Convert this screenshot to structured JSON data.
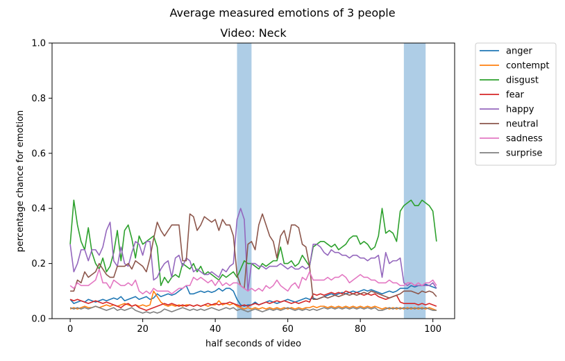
{
  "chart_data": {
    "type": "line",
    "suptitle": "Average measured emotions of 3 people",
    "title": "Video: Neck",
    "xlabel": "half seconds of video",
    "ylabel": "percentage chance for emotion",
    "xlim": [
      -5,
      106
    ],
    "ylim": [
      0,
      1.0
    ],
    "xticks": [
      0,
      20,
      40,
      60,
      80,
      100
    ],
    "yticks": [
      0.0,
      0.2,
      0.4,
      0.6,
      0.8,
      1.0
    ],
    "xtick_labels": [
      "0",
      "20",
      "40",
      "60",
      "80",
      "100"
    ],
    "ytick_labels": [
      "0.0",
      "0.2",
      "0.4",
      "0.6",
      "0.8",
      "1.0"
    ],
    "highlight_spans": [
      [
        46,
        50
      ],
      [
        92,
        98
      ]
    ],
    "highlight_color": "#aecde6",
    "legend_position": "outside-right",
    "grid": false,
    "x": [
      0,
      1,
      2,
      3,
      4,
      5,
      6,
      7,
      8,
      9,
      10,
      11,
      12,
      13,
      14,
      15,
      16,
      17,
      18,
      19,
      20,
      21,
      22,
      23,
      24,
      25,
      26,
      27,
      28,
      29,
      30,
      31,
      32,
      33,
      34,
      35,
      36,
      37,
      38,
      39,
      40,
      41,
      42,
      43,
      44,
      45,
      46,
      47,
      48,
      49,
      50,
      51,
      52,
      53,
      54,
      55,
      56,
      57,
      58,
      59,
      60,
      61,
      62,
      63,
      64,
      65,
      66,
      67,
      68,
      69,
      70,
      71,
      72,
      73,
      74,
      75,
      76,
      77,
      78,
      79,
      80,
      81,
      82,
      83,
      84,
      85,
      86,
      87,
      88,
      89,
      90,
      91,
      92,
      93,
      94,
      95,
      96,
      97,
      98,
      99,
      100,
      101
    ],
    "series": [
      {
        "name": "anger",
        "color": "#1f77b4",
        "values": [
          0.07,
          0.055,
          0.06,
          0.065,
          0.06,
          0.07,
          0.065,
          0.06,
          0.065,
          0.07,
          0.065,
          0.07,
          0.075,
          0.07,
          0.08,
          0.065,
          0.07,
          0.075,
          0.08,
          0.07,
          0.075,
          0.08,
          0.07,
          0.075,
          0.09,
          0.08,
          0.085,
          0.09,
          0.085,
          0.09,
          0.1,
          0.11,
          0.12,
          0.09,
          0.09,
          0.095,
          0.1,
          0.095,
          0.1,
          0.095,
          0.1,
          0.11,
          0.1,
          0.11,
          0.11,
          0.1,
          0.07,
          0.05,
          0.045,
          0.05,
          0.05,
          0.06,
          0.05,
          0.055,
          0.06,
          0.065,
          0.06,
          0.055,
          0.06,
          0.065,
          0.07,
          0.065,
          0.06,
          0.065,
          0.07,
          0.075,
          0.07,
          0.075,
          0.07,
          0.075,
          0.08,
          0.085,
          0.09,
          0.085,
          0.09,
          0.095,
          0.09,
          0.095,
          0.1,
          0.095,
          0.1,
          0.105,
          0.1,
          0.105,
          0.1,
          0.095,
          0.09,
          0.095,
          0.1,
          0.095,
          0.1,
          0.11,
          0.11,
          0.11,
          0.12,
          0.115,
          0.12,
          0.12,
          0.125,
          0.12,
          0.115,
          0.11
        ]
      },
      {
        "name": "contempt",
        "color": "#ff7f0e",
        "values": [
          0.035,
          0.04,
          0.035,
          0.04,
          0.045,
          0.04,
          0.04,
          0.045,
          0.04,
          0.045,
          0.05,
          0.045,
          0.05,
          0.045,
          0.05,
          0.055,
          0.05,
          0.045,
          0.05,
          0.045,
          0.05,
          0.045,
          0.05,
          0.1,
          0.08,
          0.06,
          0.05,
          0.045,
          0.05,
          0.045,
          0.05,
          0.045,
          0.05,
          0.05,
          0.045,
          0.05,
          0.045,
          0.05,
          0.045,
          0.05,
          0.05,
          0.065,
          0.05,
          0.055,
          0.05,
          0.055,
          0.045,
          0.04,
          0.035,
          0.04,
          0.035,
          0.04,
          0.035,
          0.04,
          0.035,
          0.04,
          0.035,
          0.04,
          0.035,
          0.04,
          0.035,
          0.04,
          0.035,
          0.04,
          0.035,
          0.04,
          0.04,
          0.045,
          0.04,
          0.045,
          0.045,
          0.04,
          0.045,
          0.04,
          0.045,
          0.04,
          0.045,
          0.04,
          0.045,
          0.04,
          0.045,
          0.04,
          0.045,
          0.04,
          0.045,
          0.04,
          0.035,
          0.04,
          0.035,
          0.04,
          0.035,
          0.04,
          0.035,
          0.04,
          0.035,
          0.04,
          0.035,
          0.04,
          0.035,
          0.04,
          0.035,
          0.03
        ]
      },
      {
        "name": "disgust",
        "color": "#2ca02c",
        "values": [
          0.27,
          0.43,
          0.34,
          0.28,
          0.25,
          0.33,
          0.24,
          0.2,
          0.18,
          0.22,
          0.17,
          0.19,
          0.24,
          0.32,
          0.21,
          0.32,
          0.34,
          0.29,
          0.22,
          0.3,
          0.27,
          0.28,
          0.29,
          0.3,
          0.26,
          0.12,
          0.15,
          0.13,
          0.15,
          0.16,
          0.15,
          0.2,
          0.19,
          0.18,
          0.2,
          0.17,
          0.19,
          0.16,
          0.17,
          0.16,
          0.15,
          0.14,
          0.16,
          0.15,
          0.16,
          0.17,
          0.15,
          0.18,
          0.21,
          0.2,
          0.2,
          0.19,
          0.18,
          0.2,
          0.19,
          0.2,
          0.21,
          0.21,
          0.26,
          0.2,
          0.2,
          0.21,
          0.19,
          0.2,
          0.23,
          0.21,
          0.19,
          0.26,
          0.27,
          0.28,
          0.28,
          0.27,
          0.26,
          0.27,
          0.25,
          0.26,
          0.27,
          0.29,
          0.3,
          0.3,
          0.27,
          0.28,
          0.27,
          0.25,
          0.26,
          0.3,
          0.4,
          0.31,
          0.32,
          0.31,
          0.28,
          0.39,
          0.41,
          0.42,
          0.43,
          0.41,
          0.41,
          0.43,
          0.42,
          0.41,
          0.39,
          0.28
        ]
      },
      {
        "name": "fear",
        "color": "#d62728",
        "values": [
          0.07,
          0.065,
          0.07,
          0.065,
          0.06,
          0.055,
          0.06,
          0.065,
          0.06,
          0.055,
          0.06,
          0.055,
          0.05,
          0.045,
          0.04,
          0.05,
          0.055,
          0.045,
          0.05,
          0.04,
          0.035,
          0.03,
          0.035,
          0.04,
          0.045,
          0.05,
          0.055,
          0.05,
          0.055,
          0.05,
          0.045,
          0.05,
          0.045,
          0.05,
          0.045,
          0.05,
          0.045,
          0.05,
          0.055,
          0.05,
          0.055,
          0.05,
          0.055,
          0.055,
          0.06,
          0.055,
          0.05,
          0.045,
          0.05,
          0.045,
          0.05,
          0.055,
          0.05,
          0.055,
          0.06,
          0.055,
          0.06,
          0.065,
          0.06,
          0.065,
          0.06,
          0.055,
          0.06,
          0.055,
          0.06,
          0.065,
          0.06,
          0.09,
          0.085,
          0.09,
          0.085,
          0.09,
          0.095,
          0.09,
          0.095,
          0.09,
          0.1,
          0.095,
          0.09,
          0.095,
          0.09,
          0.085,
          0.09,
          0.085,
          0.09,
          0.08,
          0.075,
          0.07,
          0.075,
          0.08,
          0.085,
          0.06,
          0.055,
          0.055,
          0.055,
          0.055,
          0.05,
          0.055,
          0.05,
          0.055,
          0.05,
          0.045
        ]
      },
      {
        "name": "happy",
        "color": "#9467bd",
        "values": [
          0.27,
          0.17,
          0.2,
          0.25,
          0.25,
          0.21,
          0.25,
          0.25,
          0.23,
          0.26,
          0.32,
          0.35,
          0.21,
          0.19,
          0.26,
          0.2,
          0.19,
          0.24,
          0.28,
          0.27,
          0.23,
          0.28,
          0.28,
          0.14,
          0.15,
          0.18,
          0.2,
          0.21,
          0.15,
          0.22,
          0.23,
          0.19,
          0.22,
          0.21,
          0.17,
          0.18,
          0.17,
          0.16,
          0.16,
          0.17,
          0.16,
          0.15,
          0.18,
          0.17,
          0.19,
          0.2,
          0.36,
          0.4,
          0.36,
          0.1,
          0.2,
          0.2,
          0.19,
          0.19,
          0.18,
          0.19,
          0.19,
          0.19,
          0.2,
          0.19,
          0.18,
          0.19,
          0.18,
          0.18,
          0.19,
          0.18,
          0.19,
          0.27,
          0.27,
          0.26,
          0.24,
          0.23,
          0.25,
          0.24,
          0.24,
          0.23,
          0.23,
          0.22,
          0.23,
          0.23,
          0.22,
          0.22,
          0.21,
          0.22,
          0.22,
          0.23,
          0.15,
          0.24,
          0.2,
          0.21,
          0.21,
          0.22,
          0.13,
          0.12,
          0.13,
          0.12,
          0.12,
          0.12,
          0.12,
          0.12,
          0.13,
          0.11
        ]
      },
      {
        "name": "neutral",
        "color": "#8c564b",
        "values": [
          0.1,
          0.1,
          0.14,
          0.13,
          0.17,
          0.15,
          0.16,
          0.17,
          0.2,
          0.18,
          0.16,
          0.15,
          0.15,
          0.19,
          0.19,
          0.19,
          0.2,
          0.18,
          0.21,
          0.2,
          0.19,
          0.17,
          0.22,
          0.29,
          0.35,
          0.32,
          0.3,
          0.32,
          0.34,
          0.34,
          0.34,
          0.21,
          0.21,
          0.38,
          0.37,
          0.32,
          0.34,
          0.37,
          0.36,
          0.35,
          0.36,
          0.32,
          0.36,
          0.34,
          0.34,
          0.3,
          0.16,
          0.12,
          0.11,
          0.27,
          0.28,
          0.25,
          0.34,
          0.38,
          0.34,
          0.3,
          0.28,
          0.22,
          0.3,
          0.32,
          0.27,
          0.34,
          0.34,
          0.33,
          0.27,
          0.26,
          0.19,
          0.07,
          0.07,
          0.075,
          0.08,
          0.075,
          0.08,
          0.085,
          0.08,
          0.085,
          0.09,
          0.085,
          0.09,
          0.085,
          0.09,
          0.095,
          0.09,
          0.1,
          0.095,
          0.09,
          0.085,
          0.08,
          0.075,
          0.08,
          0.085,
          0.09,
          0.1,
          0.1,
          0.1,
          0.095,
          0.09,
          0.1,
          0.095,
          0.1,
          0.095,
          0.08
        ]
      },
      {
        "name": "sadness",
        "color": "#e377c2",
        "values": [
          0.12,
          0.11,
          0.13,
          0.12,
          0.12,
          0.12,
          0.13,
          0.14,
          0.18,
          0.13,
          0.13,
          0.11,
          0.14,
          0.13,
          0.12,
          0.12,
          0.13,
          0.12,
          0.14,
          0.1,
          0.09,
          0.1,
          0.09,
          0.11,
          0.1,
          0.1,
          0.1,
          0.1,
          0.09,
          0.1,
          0.11,
          0.11,
          0.12,
          0.12,
          0.15,
          0.14,
          0.15,
          0.14,
          0.13,
          0.14,
          0.12,
          0.14,
          0.12,
          0.13,
          0.12,
          0.13,
          0.13,
          0.12,
          0.11,
          0.1,
          0.11,
          0.1,
          0.11,
          0.1,
          0.12,
          0.11,
          0.12,
          0.14,
          0.12,
          0.11,
          0.1,
          0.12,
          0.13,
          0.11,
          0.15,
          0.14,
          0.17,
          0.14,
          0.14,
          0.14,
          0.14,
          0.15,
          0.14,
          0.15,
          0.15,
          0.16,
          0.15,
          0.13,
          0.14,
          0.15,
          0.16,
          0.15,
          0.15,
          0.14,
          0.14,
          0.13,
          0.13,
          0.13,
          0.14,
          0.13,
          0.13,
          0.12,
          0.12,
          0.13,
          0.13,
          0.12,
          0.13,
          0.12,
          0.13,
          0.13,
          0.14,
          0.12
        ]
      },
      {
        "name": "surprise",
        "color": "#7f7f7f",
        "values": [
          0.04,
          0.035,
          0.04,
          0.035,
          0.04,
          0.035,
          0.04,
          0.045,
          0.04,
          0.035,
          0.03,
          0.035,
          0.04,
          0.03,
          0.035,
          0.03,
          0.035,
          0.04,
          0.03,
          0.025,
          0.02,
          0.025,
          0.02,
          0.025,
          0.02,
          0.025,
          0.035,
          0.03,
          0.025,
          0.03,
          0.035,
          0.04,
          0.035,
          0.03,
          0.035,
          0.03,
          0.035,
          0.03,
          0.035,
          0.04,
          0.035,
          0.03,
          0.035,
          0.04,
          0.035,
          0.04,
          0.03,
          0.035,
          0.03,
          0.025,
          0.03,
          0.035,
          0.03,
          0.025,
          0.03,
          0.035,
          0.03,
          0.035,
          0.03,
          0.035,
          0.04,
          0.035,
          0.03,
          0.035,
          0.03,
          0.035,
          0.03,
          0.035,
          0.03,
          0.035,
          0.04,
          0.035,
          0.04,
          0.035,
          0.04,
          0.035,
          0.04,
          0.035,
          0.04,
          0.035,
          0.04,
          0.035,
          0.04,
          0.035,
          0.04,
          0.03,
          0.03,
          0.035,
          0.04,
          0.035,
          0.04,
          0.035,
          0.04,
          0.035,
          0.04,
          0.035,
          0.04,
          0.035,
          0.04,
          0.035,
          0.03,
          0.03
        ]
      }
    ]
  }
}
